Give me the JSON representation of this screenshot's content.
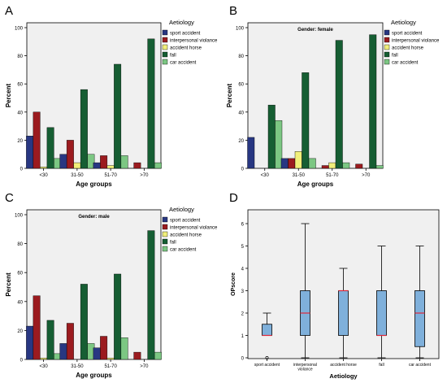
{
  "colors": {
    "sport accident": "#283782",
    "interpersonal violance": "#9b1b1f",
    "accident horse": "#f1ef7a",
    "fall": "#165e33",
    "car accident": "#7cc783",
    "box_fill": "#7fb0db",
    "median": "#e0283a",
    "panel_bg": "#f0f0f0"
  },
  "chart_data": [
    {
      "type": "bar",
      "panel_label": "A",
      "subtitle": "",
      "categories": [
        "<30",
        "31-50",
        "51-70",
        ">70"
      ],
      "xlabel": "Age groups",
      "ylabel": "Percent",
      "ylim": [
        0,
        100
      ],
      "yticks": [
        0,
        20,
        40,
        60,
        80,
        100
      ],
      "grid": false,
      "legend_title": "Aetiology",
      "legend_position": "right",
      "series": [
        {
          "name": "sport accident",
          "values": [
            23,
            10,
            4,
            0
          ]
        },
        {
          "name": "interpersonal violance",
          "values": [
            40,
            20,
            9,
            4
          ]
        },
        {
          "name": "accident horse",
          "values": [
            1,
            4,
            2,
            0
          ]
        },
        {
          "name": "fall",
          "values": [
            29,
            56,
            74,
            92
          ]
        },
        {
          "name": "car accident",
          "values": [
            7,
            10,
            9,
            4
          ]
        }
      ]
    },
    {
      "type": "bar",
      "panel_label": "B",
      "subtitle": "Gender: female",
      "categories": [
        "<30",
        "31-50",
        "51-70",
        ">70"
      ],
      "xlabel": "Age groups",
      "ylabel": "Percent",
      "ylim": [
        0,
        100
      ],
      "yticks": [
        0,
        20,
        40,
        60,
        80,
        100
      ],
      "grid": false,
      "legend_title": "Aetiology",
      "legend_position": "right",
      "series": [
        {
          "name": "sport accident",
          "values": [
            22,
            7,
            0,
            0
          ]
        },
        {
          "name": "interpersonal violance",
          "values": [
            0,
            7,
            2,
            3
          ]
        },
        {
          "name": "accident horse",
          "values": [
            0,
            12,
            4,
            0
          ]
        },
        {
          "name": "fall",
          "values": [
            45,
            68,
            91,
            95
          ]
        },
        {
          "name": "car accident",
          "values": [
            34,
            7,
            4,
            2
          ]
        }
      ]
    },
    {
      "type": "bar",
      "panel_label": "C",
      "subtitle": "Gender: male",
      "categories": [
        "<30",
        "31-50",
        "51-70",
        ">70"
      ],
      "xlabel": "Age groups",
      "ylabel": "Percent",
      "ylim": [
        0,
        100
      ],
      "yticks": [
        0,
        20,
        40,
        60,
        80,
        100
      ],
      "grid": false,
      "legend_title": "Aetiology",
      "legend_position": "right",
      "series": [
        {
          "name": "sport accident",
          "values": [
            23,
            11,
            8,
            0
          ]
        },
        {
          "name": "interpersonal violance",
          "values": [
            44,
            25,
            16,
            5
          ]
        },
        {
          "name": "accident horse",
          "values": [
            1,
            0,
            1,
            0
          ]
        },
        {
          "name": "fall",
          "values": [
            27,
            52,
            59,
            89
          ]
        },
        {
          "name": "car accident",
          "values": [
            4,
            11,
            15,
            5
          ]
        }
      ]
    },
    {
      "type": "boxplot",
      "panel_label": "D",
      "xlabel": "Aetiology",
      "ylabel": "OPscore",
      "ylim": [
        0,
        6
      ],
      "yticks": [
        0,
        1,
        2,
        3,
        4,
        5,
        6
      ],
      "grid": false,
      "categories": [
        "sport accident",
        "interpersonal violance",
        "accident horse",
        "fall",
        "car accident"
      ],
      "boxes": [
        {
          "category": "sport accident",
          "min": 1,
          "q1": 1,
          "median": 1,
          "q3": 1.5,
          "max": 2,
          "outliers": [
            0
          ]
        },
        {
          "category": "interpersonal violance",
          "min": 0,
          "q1": 1,
          "median": 2,
          "q3": 3,
          "max": 6,
          "outliers": []
        },
        {
          "category": "accident horse",
          "min": 0,
          "q1": 1,
          "median": 3,
          "q3": 3,
          "max": 4,
          "outliers": []
        },
        {
          "category": "fall",
          "min": 0,
          "q1": 1,
          "median": 1,
          "q3": 3,
          "max": 5,
          "outliers": []
        },
        {
          "category": "car accident",
          "min": 0,
          "q1": 0.5,
          "median": 2,
          "q3": 3,
          "max": 5,
          "outliers": []
        }
      ]
    }
  ]
}
